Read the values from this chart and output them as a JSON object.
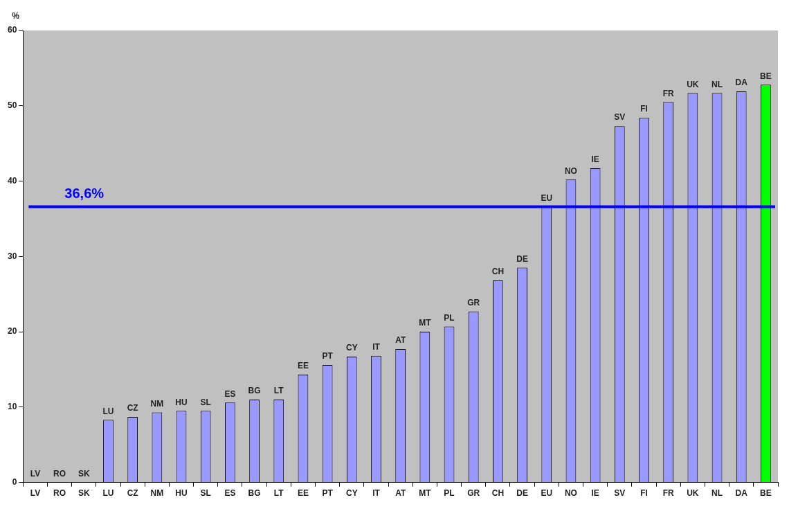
{
  "chart_data": {
    "type": "bar",
    "ylabel": "%",
    "categories": [
      "LV",
      "RO",
      "SK",
      "LU",
      "CZ",
      "NM",
      "HU",
      "SL",
      "ES",
      "BG",
      "LT",
      "EE",
      "PT",
      "CY",
      "IT",
      "AT",
      "MT",
      "PL",
      "GR",
      "CH",
      "DE",
      "EU",
      "NO",
      "IE",
      "SV",
      "FI",
      "FR",
      "UK",
      "NL",
      "DA",
      "BE"
    ],
    "values": [
      0,
      0,
      0,
      8.3,
      8.7,
      9.3,
      9.5,
      9.5,
      10.6,
      11.0,
      11.0,
      14.3,
      15.6,
      16.7,
      16.8,
      17.7,
      20.0,
      20.7,
      22.7,
      26.8,
      28.5,
      36.6,
      40.2,
      41.7,
      47.3,
      48.4,
      50.5,
      51.7,
      51.7,
      51.9,
      52.8
    ],
    "colors": [
      "#9999ff",
      "#9999ff",
      "#9999ff",
      "#9999ff",
      "#9999ff",
      "#9999ff",
      "#9999ff",
      "#9999ff",
      "#9999ff",
      "#9999ff",
      "#9999ff",
      "#9999ff",
      "#9999ff",
      "#9999ff",
      "#9999ff",
      "#9999ff",
      "#9999ff",
      "#9999ff",
      "#9999ff",
      "#9999ff",
      "#9999ff",
      "#9999ff",
      "#9999ff",
      "#9999ff",
      "#9999ff",
      "#9999ff",
      "#9999ff",
      "#9999ff",
      "#9999ff",
      "#9999ff",
      "#00ff00"
    ],
    "ylim": [
      0,
      60
    ],
    "yticks": [
      0,
      10,
      20,
      30,
      40,
      50,
      60
    ],
    "grid": false,
    "ref_lines": [
      {
        "axis": "y",
        "value": 36.6,
        "label": "36,6%",
        "color": "#0000ff"
      }
    ],
    "annotations": [
      {
        "text": "LV",
        "x": "LV",
        "y": 0
      },
      {
        "text": "RO",
        "x": "RO",
        "y": 0
      },
      {
        "text": "SK",
        "x": "SK",
        "y": 0
      },
      {
        "text": "LU",
        "x": "LU",
        "y": 8.3
      },
      {
        "text": "CZ",
        "x": "CZ",
        "y": 8.7
      },
      {
        "text": "NM",
        "x": "NM",
        "y": 9.3
      },
      {
        "text": "HU",
        "x": "HU",
        "y": 9.5
      },
      {
        "text": "SL",
        "x": "SL",
        "y": 9.5
      },
      {
        "text": "ES",
        "x": "ES",
        "y": 10.6
      },
      {
        "text": "BG",
        "x": "BG",
        "y": 11.0
      },
      {
        "text": "LT",
        "x": "LT",
        "y": 11.0
      },
      {
        "text": "EE",
        "x": "EE",
        "y": 14.3
      },
      {
        "text": "PT",
        "x": "PT",
        "y": 15.6
      },
      {
        "text": "CY",
        "x": "CY",
        "y": 16.7
      },
      {
        "text": "IT",
        "x": "IT",
        "y": 16.8
      },
      {
        "text": "AT",
        "x": "AT",
        "y": 17.7
      },
      {
        "text": "MT",
        "x": "MT",
        "y": 20.0
      },
      {
        "text": "PL",
        "x": "PL",
        "y": 20.7
      },
      {
        "text": "GR",
        "x": "GR",
        "y": 22.7
      },
      {
        "text": "CH",
        "x": "CH",
        "y": 26.8
      },
      {
        "text": "DE",
        "x": "DE",
        "y": 28.5
      },
      {
        "text": "EU",
        "x": "EU",
        "y": 36.6
      },
      {
        "text": "NO",
        "x": "NO",
        "y": 40.2
      },
      {
        "text": "IE",
        "x": "IE",
        "y": 41.7
      },
      {
        "text": "SV",
        "x": "SV",
        "y": 47.3
      },
      {
        "text": "FI",
        "x": "FI",
        "y": 48.4
      },
      {
        "text": "FR",
        "x": "FR",
        "y": 50.5
      },
      {
        "text": "UK",
        "x": "UK",
        "y": 51.7
      },
      {
        "text": "NL",
        "x": "NL",
        "y": 51.7
      },
      {
        "text": "DA",
        "x": "DA",
        "y": 51.9
      },
      {
        "text": "BE",
        "x": "BE",
        "y": 52.8
      }
    ]
  }
}
